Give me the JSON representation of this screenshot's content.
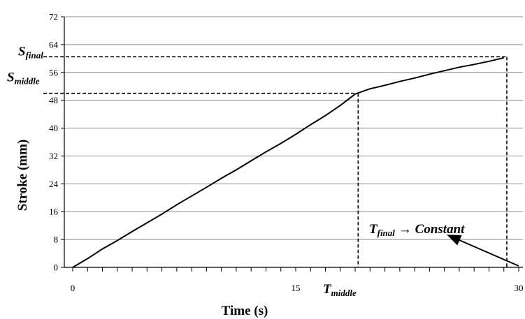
{
  "chart_data": {
    "type": "line",
    "xlabel": "Time (s)",
    "ylabel": "Stroke (mm)",
    "xlim": [
      0,
      30
    ],
    "ylim": [
      0,
      72
    ],
    "xticks": [
      {
        "value": 0,
        "label": "0"
      },
      {
        "value": 15,
        "label": "15"
      },
      {
        "value": 30,
        "label": "30"
      }
    ],
    "yticks": [
      0,
      8,
      16,
      24,
      32,
      40,
      48,
      56,
      64,
      72
    ],
    "grid": "horizontal",
    "series": [
      {
        "values": [
          [
            0,
            0
          ],
          [
            1,
            2.5
          ],
          [
            2,
            5.3
          ],
          [
            3,
            7.7
          ],
          [
            4,
            10.3
          ],
          [
            5,
            12.8
          ],
          [
            6,
            15.3
          ],
          [
            7,
            18.0
          ],
          [
            8,
            20.5
          ],
          [
            9,
            23.0
          ],
          [
            10,
            25.6
          ],
          [
            11,
            28.0
          ],
          [
            12,
            30.6
          ],
          [
            13,
            33.2
          ],
          [
            14,
            35.6
          ],
          [
            15,
            38.2
          ],
          [
            16,
            41.0
          ],
          [
            17,
            43.6
          ],
          [
            18,
            46.5
          ],
          [
            19,
            49.8
          ],
          [
            20,
            51.3
          ],
          [
            21,
            52.3
          ],
          [
            22,
            53.4
          ],
          [
            23,
            54.4
          ],
          [
            24,
            55.5
          ],
          [
            25,
            56.5
          ],
          [
            26,
            57.5
          ],
          [
            27,
            58.3
          ],
          [
            28,
            59.2
          ],
          [
            29,
            60.2
          ]
        ]
      }
    ],
    "annotations": {
      "s_final": {
        "base": "S",
        "sub": "final",
        "value": 60.5
      },
      "s_middle": {
        "base": "S",
        "sub": "middle",
        "value": 50
      },
      "t_middle": {
        "base": "T",
        "sub": "middle",
        "value": 19.2
      },
      "t_final": {
        "base": "T",
        "sub": "final",
        "value": 29.2,
        "arrow_text": "→ Constant"
      }
    }
  }
}
